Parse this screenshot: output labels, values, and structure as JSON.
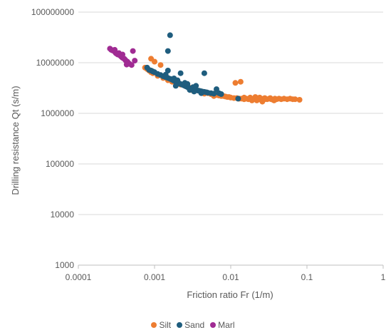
{
  "chart_data": {
    "type": "scatter",
    "x_scale": "log",
    "y_scale": "log",
    "xlim": [
      0.0001,
      1
    ],
    "ylim": [
      1000,
      100000000
    ],
    "x_ticks": [
      "0.0001",
      "0.001",
      "0.01",
      "0.1",
      "1"
    ],
    "y_ticks": [
      "1000",
      "10000",
      "100000",
      "1000000",
      "10000000",
      "100000000"
    ],
    "xlabel": "Friction ratio Fr (1/m)",
    "ylabel": "Drilling resistance Qt (s/m)",
    "grid": "horizontal major",
    "legend_position": "bottom",
    "series": [
      {
        "name": "Silt",
        "color": "#ED7D31",
        "points": [
          [
            0.00075,
            8000000
          ],
          [
            0.0008,
            7500000
          ],
          [
            0.00085,
            7000000
          ],
          [
            0.0009,
            6500000
          ],
          [
            0.00095,
            6200000
          ],
          [
            0.0011,
            5500000
          ],
          [
            0.0013,
            5000000
          ],
          [
            0.0015,
            4500000
          ],
          [
            0.0017,
            4200000
          ],
          [
            0.002,
            4000000
          ],
          [
            0.0022,
            3700000
          ],
          [
            0.0025,
            3500000
          ],
          [
            0.0028,
            3300000
          ],
          [
            0.003,
            3100000
          ],
          [
            0.0034,
            3000000
          ],
          [
            0.0038,
            2800000
          ],
          [
            0.0042,
            2700000
          ],
          [
            0.0047,
            2600000
          ],
          [
            0.005,
            2500000
          ],
          [
            0.0055,
            2400000
          ],
          [
            0.006,
            2350000
          ],
          [
            0.0065,
            2300000
          ],
          [
            0.007,
            2250000
          ],
          [
            0.0075,
            2200000
          ],
          [
            0.008,
            2200000
          ],
          [
            0.0085,
            2150000
          ],
          [
            0.009,
            2100000
          ],
          [
            0.0095,
            2100000
          ],
          [
            0.01,
            2050000
          ],
          [
            0.011,
            2000000
          ],
          [
            0.012,
            2000000
          ],
          [
            0.013,
            1950000
          ],
          [
            0.014,
            1950000
          ],
          [
            0.015,
            1900000
          ],
          [
            0.016,
            1950000
          ],
          [
            0.017,
            1900000
          ],
          [
            0.018,
            1950000
          ],
          [
            0.019,
            1900000
          ],
          [
            0.02,
            1900000
          ],
          [
            0.021,
            1950000
          ],
          [
            0.022,
            1900000
          ],
          [
            0.023,
            2000000
          ],
          [
            0.024,
            1900000
          ],
          [
            0.025,
            1850000
          ],
          [
            0.026,
            1900000
          ],
          [
            0.027,
            1950000
          ],
          [
            0.028,
            1900000
          ],
          [
            0.03,
            1900000
          ],
          [
            0.032,
            1950000
          ],
          [
            0.034,
            1900000
          ],
          [
            0.036,
            1850000
          ],
          [
            0.038,
            1950000
          ],
          [
            0.04,
            1900000
          ],
          [
            0.043,
            1950000
          ],
          [
            0.046,
            1900000
          ],
          [
            0.05,
            1950000
          ],
          [
            0.055,
            1900000
          ],
          [
            0.06,
            1950000
          ],
          [
            0.065,
            1900000
          ],
          [
            0.07,
            1900000
          ],
          [
            0.08,
            1850000
          ],
          [
            0.021,
            2100000
          ],
          [
            0.024,
            2050000
          ],
          [
            0.018,
            2050000
          ],
          [
            0.015,
            2050000
          ],
          [
            0.028,
            2000000
          ],
          [
            0.033,
            2000000
          ],
          [
            0.037,
            1800000
          ],
          [
            0.026,
            1700000
          ],
          [
            0.019,
            1800000
          ],
          [
            0.0009,
            12000000
          ],
          [
            0.001,
            10500000
          ],
          [
            0.0012,
            9000000
          ],
          [
            0.0115,
            4000000
          ],
          [
            0.0135,
            4200000
          ],
          [
            0.003,
            2900000
          ],
          [
            0.0045,
            2450000
          ],
          [
            0.006,
            2200000
          ],
          [
            0.0125,
            1950000
          ],
          [
            0.022,
            1800000
          ]
        ]
      },
      {
        "name": "Sand",
        "color": "#1F5D7E",
        "points": [
          [
            0.0016,
            35000000
          ],
          [
            0.0015,
            17000000
          ],
          [
            0.0008,
            8000000
          ],
          [
            0.00085,
            7200000
          ],
          [
            0.0009,
            7000000
          ],
          [
            0.00095,
            6700000
          ],
          [
            0.001,
            6500000
          ],
          [
            0.0011,
            6000000
          ],
          [
            0.0012,
            5700000
          ],
          [
            0.0013,
            5400000
          ],
          [
            0.0014,
            5200000
          ],
          [
            0.0015,
            7000000
          ],
          [
            0.0015,
            5000000
          ],
          [
            0.0016,
            4800000
          ],
          [
            0.0017,
            4600000
          ],
          [
            0.0018,
            4400000
          ],
          [
            0.0019,
            4200000
          ],
          [
            0.002,
            4500000
          ],
          [
            0.002,
            4100000
          ],
          [
            0.0021,
            3900000
          ],
          [
            0.0022,
            3800000
          ],
          [
            0.0022,
            6200000
          ],
          [
            0.0023,
            3700000
          ],
          [
            0.0024,
            3600000
          ],
          [
            0.0025,
            3500000
          ],
          [
            0.0026,
            3400000
          ],
          [
            0.0027,
            3300000
          ],
          [
            0.0028,
            3200000
          ],
          [
            0.003,
            3100000
          ],
          [
            0.0031,
            3000000
          ],
          [
            0.0032,
            3300000
          ],
          [
            0.0034,
            2900000
          ],
          [
            0.0036,
            2850000
          ],
          [
            0.0038,
            2800000
          ],
          [
            0.004,
            2750000
          ],
          [
            0.0042,
            2700000
          ],
          [
            0.0045,
            6200000
          ],
          [
            0.0045,
            2650000
          ],
          [
            0.0048,
            2600000
          ],
          [
            0.005,
            2550000
          ],
          [
            0.0055,
            2500000
          ],
          [
            0.006,
            2450000
          ],
          [
            0.0065,
            3000000
          ],
          [
            0.007,
            2500000
          ],
          [
            0.0075,
            2400000
          ],
          [
            0.0035,
            3500000
          ],
          [
            0.0025,
            4000000
          ],
          [
            0.0018,
            4900000
          ],
          [
            0.0014,
            5800000
          ],
          [
            0.0029,
            2900000
          ],
          [
            0.0033,
            2700000
          ],
          [
            0.0041,
            2500000
          ],
          [
            0.0125,
            1950000
          ],
          [
            0.0019,
            3500000
          ],
          [
            0.0027,
            3800000
          ]
        ]
      },
      {
        "name": "Marl",
        "color": "#A02B93",
        "points": [
          [
            0.00026,
            19000000
          ],
          [
            0.00027,
            18000000
          ],
          [
            0.00028,
            17500000
          ],
          [
            0.0003,
            16500000
          ],
          [
            0.00031,
            15500000
          ],
          [
            0.00032,
            15000000
          ],
          [
            0.00033,
            14500000
          ],
          [
            0.00035,
            14000000
          ],
          [
            0.00036,
            13500000
          ],
          [
            0.00037,
            13000000
          ],
          [
            0.00038,
            12500000
          ],
          [
            0.0004,
            12000000
          ],
          [
            0.00041,
            11500000
          ],
          [
            0.00042,
            11000000
          ],
          [
            0.00044,
            10500000
          ],
          [
            0.00045,
            10000000
          ],
          [
            0.00047,
            9500000
          ],
          [
            0.0005,
            9000000
          ],
          [
            0.00052,
            17000000
          ],
          [
            0.00055,
            11000000
          ],
          [
            0.00043,
            9200000
          ],
          [
            0.00038,
            14500000
          ],
          [
            0.0003,
            18000000
          ],
          [
            0.00034,
            15500000
          ]
        ]
      }
    ]
  }
}
